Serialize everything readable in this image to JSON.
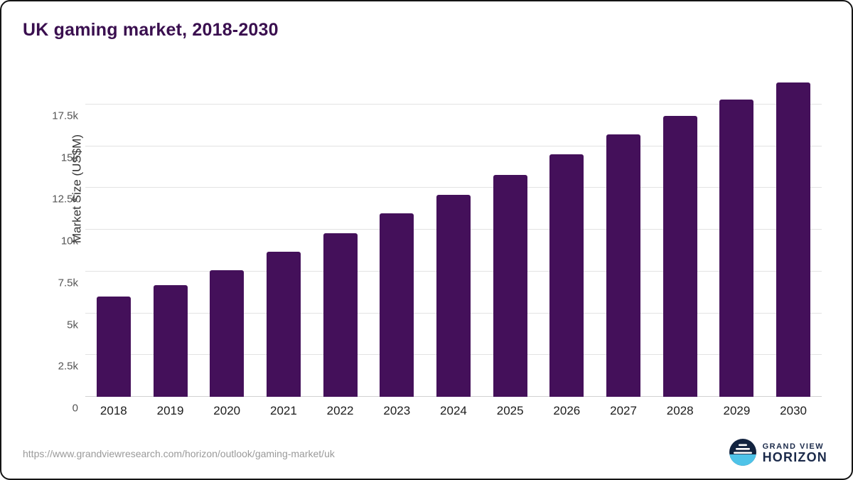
{
  "chart_data": {
    "type": "bar",
    "title": "UK gaming market, 2018-2030",
    "xlabel": "",
    "ylabel": "Market Size (US$M)",
    "categories": [
      "2018",
      "2019",
      "2020",
      "2021",
      "2022",
      "2023",
      "2024",
      "2025",
      "2026",
      "2027",
      "2028",
      "2029",
      "2030"
    ],
    "values": [
      6000,
      6700,
      7600,
      8700,
      9800,
      11000,
      12100,
      13300,
      14500,
      15700,
      16800,
      17800,
      18800
    ],
    "ylim": [
      0,
      19500
    ],
    "yticks": [
      {
        "value": 0,
        "label": "0"
      },
      {
        "value": 2500,
        "label": "2.5k"
      },
      {
        "value": 5000,
        "label": "5k"
      },
      {
        "value": 7500,
        "label": "7.5k"
      },
      {
        "value": 10000,
        "label": "10k"
      },
      {
        "value": 12500,
        "label": "12.5k"
      },
      {
        "value": 15000,
        "label": "15k"
      },
      {
        "value": 17500,
        "label": "17.5k"
      }
    ],
    "grid": true,
    "legend": "none",
    "bar_color": "#44105a",
    "grid_color": "#e3e3e3",
    "title_color": "#3a0f4f"
  },
  "footer": {
    "source_url": "https://www.grandviewresearch.com/horizon/outlook/gaming-market/uk",
    "brand_line1": "GRAND VIEW",
    "brand_line2": "HORIZON",
    "logo_icon": "horizon-circle-icon",
    "brand_color": "#1b2a4a",
    "logo_accent_color": "#4ec3e8"
  }
}
